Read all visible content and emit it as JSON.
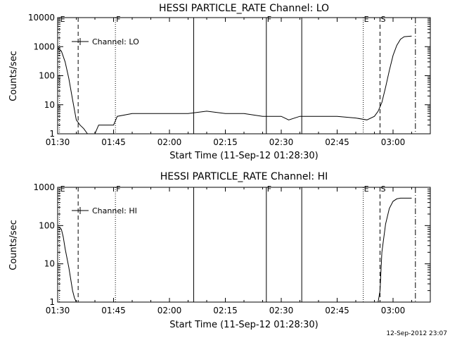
{
  "footer": {
    "timestamp": "12-Sep-2012 23:07"
  },
  "chart_data": [
    {
      "type": "line",
      "title": "HESSI PARTICLE_RATE Channel: LO",
      "xlabel": "Start Time (11-Sep-12 01:28:30)",
      "ylabel": "Counts/sec",
      "yscale": "log",
      "ylim": [
        1,
        10000
      ],
      "xlim_minutes": [
        90,
        190
      ],
      "xtick_labels": [
        "01:30",
        "01:45",
        "02:00",
        "02:15",
        "02:30",
        "02:45",
        "03:00"
      ],
      "ytick_labels": [
        "1",
        "10",
        "100",
        "1000",
        "10000"
      ],
      "legend": {
        "label": "Channel: LO",
        "position": "top-left"
      },
      "markers": [
        {
          "label": "E",
          "time": "01:30.5",
          "style": "dotted"
        },
        {
          "label": "",
          "time": "01:35.5",
          "style": "dashed"
        },
        {
          "label": "F",
          "time": "01:45.5",
          "style": "dotted"
        },
        {
          "label": "",
          "time": "02:06.5",
          "style": "solid"
        },
        {
          "label": "F",
          "time": "02:26",
          "style": "solid"
        },
        {
          "label": "",
          "time": "02:35.5",
          "style": "solid"
        },
        {
          "label": "E",
          "time": "02:52",
          "style": "dotted"
        },
        {
          "label": "S",
          "time": "02:56.5",
          "style": "dashed"
        },
        {
          "label": "",
          "time": "03:06",
          "style": "dashdot"
        }
      ],
      "series": [
        {
          "x": [
            "01:30",
            "01:31",
            "01:32",
            "01:33",
            "01:34",
            "01:35",
            "01:36",
            "01:37",
            "01:38",
            "01:39",
            "01:40",
            "01:41",
            "01:42",
            "01:43",
            "01:44",
            "01:45",
            "01:46",
            "01:50",
            "01:55",
            "02:00",
            "02:05",
            "02:10",
            "02:15",
            "02:20",
            "02:25",
            "02:30",
            "02:32",
            "02:35",
            "02:40",
            "02:45",
            "02:50",
            "02:53",
            "02:55",
            "02:56",
            "02:57",
            "02:58",
            "02:59",
            "03:00",
            "03:01",
            "03:02",
            "03:03",
            "03:05"
          ],
          "values": [
            900,
            700,
            300,
            80,
            15,
            3,
            2,
            1.5,
            1,
            1,
            1,
            2,
            2,
            2,
            2,
            2,
            4,
            5,
            5,
            5,
            5,
            6,
            5,
            5,
            4,
            4,
            3,
            4,
            4,
            4,
            3.5,
            3,
            4,
            6,
            12,
            40,
            150,
            500,
            1100,
            1800,
            2200,
            2300
          ]
        }
      ]
    },
    {
      "type": "line",
      "title": "HESSI PARTICLE_RATE Channel: HI",
      "xlabel": "Start Time (11-Sep-12 01:28:30)",
      "ylabel": "Counts/sec",
      "yscale": "log",
      "ylim": [
        1,
        1000
      ],
      "xlim_minutes": [
        90,
        190
      ],
      "xtick_labels": [
        "01:30",
        "01:45",
        "02:00",
        "02:15",
        "02:30",
        "02:45",
        "03:00"
      ],
      "ytick_labels": [
        "1",
        "10",
        "100",
        "1000"
      ],
      "legend": {
        "label": "Channel: HI",
        "position": "top-left"
      },
      "markers": [
        {
          "label": "E",
          "time": "01:30.5",
          "style": "dotted"
        },
        {
          "label": "",
          "time": "01:35.5",
          "style": "dashed"
        },
        {
          "label": "F",
          "time": "01:45.5",
          "style": "dotted"
        },
        {
          "label": "",
          "time": "02:06.5",
          "style": "solid"
        },
        {
          "label": "F",
          "time": "02:26",
          "style": "solid"
        },
        {
          "label": "",
          "time": "02:35.5",
          "style": "solid"
        },
        {
          "label": "E",
          "time": "02:52",
          "style": "dotted"
        },
        {
          "label": "S",
          "time": "02:56.5",
          "style": "dashed"
        },
        {
          "label": "",
          "time": "03:06",
          "style": "dashdot"
        }
      ],
      "series": [
        {
          "x": [
            "01:30",
            "01:30.5",
            "01:31",
            "01:31.5",
            "01:32",
            "01:33",
            "01:34",
            "01:34.5",
            "01:35",
            "02:56",
            "02:56.5",
            "02:57",
            "02:58",
            "02:59",
            "03:00",
            "03:01",
            "03:02",
            "03:03",
            "03:05"
          ],
          "values": [
            90,
            90,
            80,
            50,
            25,
            8,
            2,
            1.3,
            1,
            1,
            2,
            20,
            110,
            280,
            430,
            500,
            520,
            520,
            520
          ]
        }
      ]
    }
  ]
}
